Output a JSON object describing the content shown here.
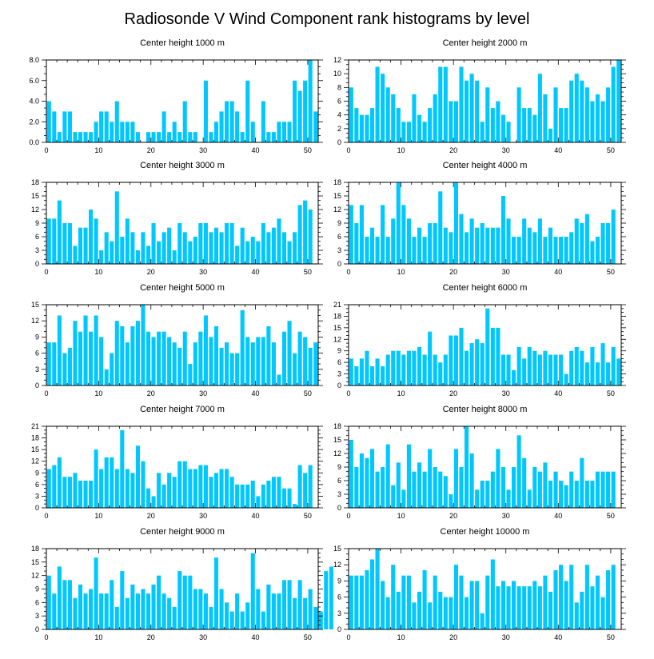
{
  "title": "Radiosonde V Wind Component rank histograms by level",
  "colors": {
    "bar": "#00C8FF",
    "axis": "#000000",
    "background": "#FFFFFF"
  },
  "chart_data": [
    {
      "type": "bar",
      "title": "Center height 1000 m",
      "xlim": [
        0,
        52
      ],
      "xticks": [
        0,
        10,
        20,
        30,
        40,
        50
      ],
      "ylim": [
        0,
        8
      ],
      "yticks": [
        0,
        2,
        4,
        6,
        8
      ],
      "ytick_labels": [
        "0.0",
        "2.0",
        "4.0",
        "6.0",
        "8.0"
      ],
      "values": [
        4,
        3,
        1,
        3,
        3,
        1,
        1,
        1,
        1,
        2,
        3,
        3,
        2,
        4,
        2,
        2,
        2,
        1,
        0,
        1,
        1,
        1,
        3,
        1,
        2,
        1,
        4,
        1,
        1,
        0,
        6,
        1,
        2,
        3,
        4,
        4,
        3,
        1,
        6,
        2,
        0,
        4,
        1,
        1,
        2,
        2,
        2,
        6,
        5,
        6,
        8,
        3
      ]
    },
    {
      "type": "bar",
      "title": "Center height 2000 m",
      "xlim": [
        0,
        52
      ],
      "xticks": [
        0,
        10,
        20,
        30,
        40,
        50
      ],
      "ylim": [
        0,
        12
      ],
      "yticks": [
        0,
        2,
        4,
        6,
        8,
        10,
        12
      ],
      "ytick_labels": [
        "0",
        "2",
        "4",
        "6",
        "8",
        "10",
        "12"
      ],
      "values": [
        8,
        5,
        4,
        4,
        5,
        11,
        10,
        8,
        7,
        5,
        3,
        3,
        7,
        4,
        3,
        5,
        7,
        11,
        11,
        6,
        6,
        11,
        9,
        10,
        9,
        3,
        8,
        5,
        6,
        4,
        3,
        0,
        8,
        5,
        5,
        4,
        10,
        7,
        2,
        8,
        5,
        5,
        9,
        10,
        9,
        8,
        6,
        7,
        6,
        8,
        11,
        12
      ]
    },
    {
      "type": "bar",
      "title": "Center height 3000 m",
      "xlim": [
        0,
        52
      ],
      "xticks": [
        0,
        10,
        20,
        30,
        40,
        50
      ],
      "ylim": [
        0,
        18
      ],
      "yticks": [
        0,
        3,
        6,
        9,
        12,
        15,
        18
      ],
      "ytick_labels": [
        "0",
        "3",
        "6",
        "9",
        "12",
        "15",
        "18"
      ],
      "values": [
        10,
        10,
        14,
        9,
        9,
        4,
        8,
        8,
        12,
        10,
        3,
        7,
        5,
        16,
        6,
        10,
        7,
        3,
        7,
        4,
        9,
        5,
        7,
        8,
        3,
        9,
        7,
        5,
        6,
        9,
        9,
        7,
        8,
        7,
        9,
        9,
        4,
        8,
        5,
        6,
        5,
        9,
        7,
        8,
        10,
        7,
        5,
        7,
        13,
        14,
        12
      ]
    },
    {
      "type": "bar",
      "title": "Center height 4000 m",
      "xlim": [
        0,
        52
      ],
      "xticks": [
        0,
        10,
        20,
        30,
        40,
        50
      ],
      "ylim": [
        0,
        18
      ],
      "yticks": [
        0,
        3,
        6,
        9,
        12,
        15,
        18
      ],
      "ytick_labels": [
        "0",
        "3",
        "6",
        "9",
        "12",
        "15",
        "18"
      ],
      "values": [
        13,
        9,
        13,
        6,
        8,
        6,
        13,
        6,
        10,
        18,
        13,
        10,
        6,
        8,
        6,
        9,
        9,
        16,
        8,
        7,
        18,
        11,
        7,
        10,
        8,
        9,
        8,
        8,
        8,
        15,
        10,
        6,
        6,
        10,
        8,
        7,
        10,
        6,
        8,
        6,
        6,
        6,
        7,
        10,
        9,
        11,
        5,
        6,
        9,
        9,
        12
      ]
    },
    {
      "type": "bar",
      "title": "Center height 5000 m",
      "xlim": [
        0,
        52
      ],
      "xticks": [
        0,
        10,
        20,
        30,
        40,
        50
      ],
      "ylim": [
        0,
        15
      ],
      "yticks": [
        0,
        3,
        6,
        9,
        12,
        15
      ],
      "ytick_labels": [
        "0",
        "3",
        "6",
        "9",
        "12",
        "15"
      ],
      "values": [
        8,
        8,
        13,
        6,
        7,
        12,
        10,
        13,
        10,
        13,
        9,
        3,
        6,
        12,
        11,
        8,
        11,
        12,
        15,
        10,
        9,
        10,
        10,
        9,
        8,
        7,
        10,
        4,
        8,
        10,
        13,
        9,
        11,
        7,
        8,
        6,
        6,
        14,
        9,
        8,
        9,
        9,
        11,
        8,
        2,
        10,
        12,
        6,
        10,
        9,
        7,
        8
      ]
    },
    {
      "type": "bar",
      "title": "Center height 6000 m",
      "xlim": [
        0,
        52
      ],
      "xticks": [
        0,
        10,
        20,
        30,
        40,
        50
      ],
      "ylim": [
        0,
        21
      ],
      "yticks": [
        0,
        3,
        6,
        9,
        12,
        15,
        18,
        21
      ],
      "ytick_labels": [
        "0",
        "3",
        "6",
        "9",
        "12",
        "15",
        "18",
        "21"
      ],
      "values": [
        7,
        5,
        7,
        9,
        5,
        7,
        5,
        8,
        9,
        9,
        8,
        9,
        9,
        10,
        8,
        14,
        8,
        6,
        8,
        13,
        13,
        15,
        9,
        11,
        12,
        11,
        20,
        15,
        15,
        8,
        8,
        4,
        10,
        7,
        10,
        9,
        8,
        9,
        8,
        8,
        8,
        3,
        9,
        10,
        9,
        6,
        10,
        6,
        11,
        6,
        10,
        7
      ]
    },
    {
      "type": "bar",
      "title": "Center height 7000 m",
      "xlim": [
        0,
        52
      ],
      "xticks": [
        0,
        10,
        20,
        30,
        40,
        50
      ],
      "ylim": [
        0,
        21
      ],
      "yticks": [
        0,
        3,
        6,
        9,
        12,
        15,
        18,
        21
      ],
      "ytick_labels": [
        "0",
        "3",
        "6",
        "9",
        "12",
        "15",
        "18",
        "21"
      ],
      "values": [
        10,
        11,
        13,
        8,
        8,
        9,
        7,
        7,
        7,
        15,
        10,
        13,
        13,
        10,
        20,
        10,
        9,
        16,
        12,
        5,
        3,
        9,
        6,
        9,
        8,
        12,
        12,
        10,
        10,
        11,
        11,
        8,
        9,
        10,
        10,
        8,
        6,
        6,
        6,
        7,
        3,
        6,
        7,
        8,
        8,
        5,
        5,
        1,
        11,
        9,
        11
      ]
    },
    {
      "type": "bar",
      "title": "Center height 8000 m",
      "xlim": [
        0,
        52
      ],
      "xticks": [
        0,
        10,
        20,
        30,
        40,
        50
      ],
      "ylim": [
        0,
        18
      ],
      "yticks": [
        0,
        3,
        6,
        9,
        12,
        15,
        18
      ],
      "ytick_labels": [
        "0",
        "3",
        "6",
        "9",
        "12",
        "15",
        "18"
      ],
      "values": [
        15,
        9,
        12,
        11,
        13,
        8,
        9,
        14,
        5,
        10,
        4,
        14,
        8,
        10,
        8,
        13,
        9,
        8,
        7,
        3,
        13,
        9,
        18,
        12,
        4,
        6,
        6,
        8,
        13,
        9,
        4,
        9,
        16,
        11,
        4,
        9,
        8,
        10,
        6,
        8,
        6,
        5,
        8,
        6,
        11,
        6,
        6,
        8,
        8,
        8,
        8
      ]
    },
    {
      "type": "bar",
      "title": "Center height 9000 m",
      "xlim": [
        0,
        52
      ],
      "xticks": [
        0,
        10,
        20,
        30,
        40,
        50
      ],
      "ylim": [
        0,
        18
      ],
      "yticks": [
        0,
        3,
        6,
        9,
        12,
        15,
        18
      ],
      "ytick_labels": [
        "0",
        "3",
        "6",
        "9",
        "12",
        "15",
        "18"
      ],
      "values": [
        12,
        8,
        14,
        11,
        11,
        7,
        10,
        8,
        9,
        16,
        8,
        8,
        11,
        5,
        13,
        7,
        10,
        8,
        9,
        8,
        10,
        12,
        8,
        7,
        5,
        13,
        12,
        12,
        9,
        9,
        8,
        5,
        16,
        9,
        6,
        4,
        8,
        4,
        6,
        17,
        9,
        4,
        10,
        8,
        8,
        11,
        11,
        7,
        11,
        7,
        9,
        5,
        4,
        13,
        14
      ]
    },
    {
      "type": "bar",
      "title": "Center height 10000 m",
      "xlim": [
        0,
        52
      ],
      "xticks": [
        0,
        10,
        20,
        30,
        40,
        50
      ],
      "ylim": [
        0,
        15
      ],
      "yticks": [
        0,
        3,
        6,
        9,
        12,
        15
      ],
      "ytick_labels": [
        "0",
        "3",
        "6",
        "9",
        "12",
        "15"
      ],
      "values": [
        10,
        10,
        10,
        11,
        13,
        15,
        9,
        6,
        12,
        7,
        10,
        10,
        5,
        7,
        11,
        5,
        10,
        7,
        6,
        6,
        12,
        10,
        6,
        9,
        9,
        3,
        10,
        13,
        8,
        9,
        8,
        9,
        8,
        8,
        8,
        9,
        8,
        10,
        7,
        11,
        12,
        9,
        12,
        5,
        7,
        12,
        8,
        10,
        6,
        11,
        12
      ]
    }
  ]
}
